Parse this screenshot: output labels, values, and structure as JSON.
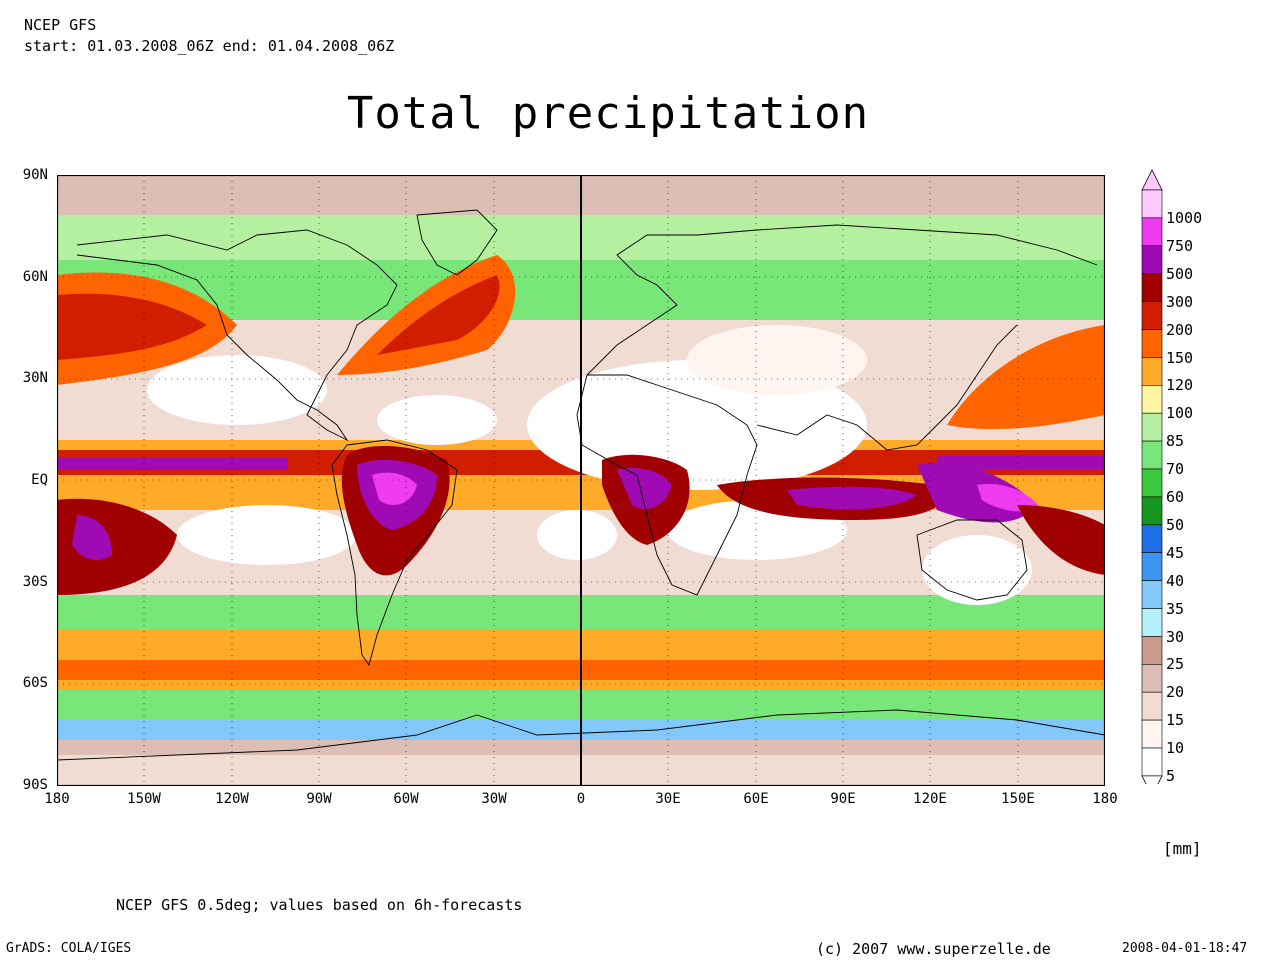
{
  "header": {
    "model": "NCEP GFS",
    "period": "start: 01.03.2008_06Z end: 01.04.2008_06Z"
  },
  "title": "Total precipitation",
  "axes": {
    "lat_labels": [
      "90N",
      "60N",
      "30N",
      "EQ",
      "30S",
      "60S",
      "90S"
    ],
    "lon_labels": [
      "180",
      "150W",
      "120W",
      "90W",
      "60W",
      "30W",
      "0",
      "30E",
      "60E",
      "90E",
      "120E",
      "150E",
      "180"
    ]
  },
  "legend": {
    "unit": "[mm]",
    "levels": [
      {
        "label": "1000",
        "color": "#ffc8ff"
      },
      {
        "label": "750",
        "color": "#f03cf0"
      },
      {
        "label": "500",
        "color": "#a00ab4"
      },
      {
        "label": "300",
        "color": "#a00000"
      },
      {
        "label": "200",
        "color": "#d21e00"
      },
      {
        "label": "150",
        "color": "#ff6400"
      },
      {
        "label": "120",
        "color": "#ffaa28"
      },
      {
        "label": "100",
        "color": "#fff5a0"
      },
      {
        "label": "85",
        "color": "#b4f0a0"
      },
      {
        "label": "70",
        "color": "#78e678"
      },
      {
        "label": "60",
        "color": "#3cc83c"
      },
      {
        "label": "50",
        "color": "#14961e"
      },
      {
        "label": "45",
        "color": "#1e6ee6"
      },
      {
        "label": "40",
        "color": "#3c96f0"
      },
      {
        "label": "35",
        "color": "#82c8fa"
      },
      {
        "label": "30",
        "color": "#b4f0fa"
      },
      {
        "label": "25",
        "color": "#c89b8c"
      },
      {
        "label": "20",
        "color": "#dcbeb4"
      },
      {
        "label": "15",
        "color": "#f0dcd2"
      },
      {
        "label": "10",
        "color": "#fff5f0"
      },
      {
        "label": "5",
        "color": "#ffffff"
      }
    ]
  },
  "footer": {
    "note": "NCEP GFS 0.5deg; values based on 6h-forecasts",
    "software": "GrADS: COLA/IGES",
    "credit": "(c) 2007 www.superzelle.de",
    "timestamp": "2008-04-01-18:47"
  }
}
